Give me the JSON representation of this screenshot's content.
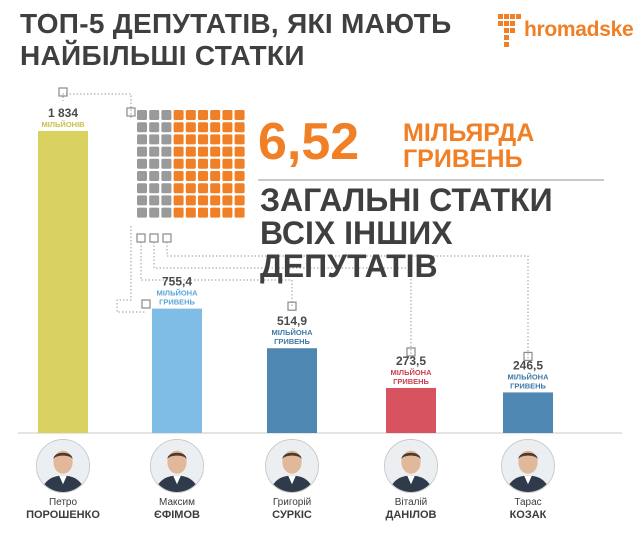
{
  "title": "ТОП-5 ДЕПУТАТІВ, ЯКІ МАЮТЬ НАЙБІЛЬШІ СТАТКИ",
  "brand": {
    "name": "hromadske",
    "color": "#f07f25"
  },
  "total": {
    "value": "6,52",
    "unit": "МІЛЬЯРДА ГРИВЕНЬ",
    "label": "ЗАГАЛЬНІ СТАТКИ ВСІХ ІНШИХ ДЕПУТАТІВ",
    "color": "#f07f25"
  },
  "chart_data": {
    "type": "bar",
    "title": "ТОП-5 ДЕПУТАТІВ, ЯКІ МАЮТЬ НАЙБІЛЬШІ СТАТКИ",
    "xlabel": "",
    "ylabel": "",
    "unit": "млн грн",
    "ylim": [
      0,
      1834
    ],
    "categories": [
      "Петро Порошенко",
      "Максим Єфімов",
      "Григорій Суркіс",
      "Віталій Данілов",
      "Тарас Козак"
    ],
    "values": [
      1834,
      755.4,
      514.9,
      273.5,
      246.5
    ],
    "grid": false,
    "bars": [
      {
        "first": "Петро",
        "last": "ПОРОШЕНКО",
        "value": 1834,
        "value_label": "1 834",
        "unit_label": "МІЛЬЙОНІВ",
        "color": "#d9d260",
        "label_color": "#c9c04a"
      },
      {
        "first": "Максим",
        "last": "ЄФІМОВ",
        "value": 755.4,
        "value_label": "755,4",
        "unit_label": "МІЛЬЙОНА ГРИВЕНЬ",
        "color": "#7fbde6",
        "label_color": "#5aa6da"
      },
      {
        "first": "Григорій",
        "last": "СУРКІС",
        "value": 514.9,
        "value_label": "514,9",
        "unit_label": "МІЛЬЙОНА ГРИВЕНЬ",
        "color": "#4f87b3",
        "label_color": "#3e79a8"
      },
      {
        "first": "Віталій",
        "last": "ДАНІЛОВ",
        "value": 273.5,
        "value_label": "273,5",
        "unit_label": "МІЛЬЙОНА ГРИВЕНЬ",
        "color": "#d6535f",
        "label_color": "#c8414d"
      },
      {
        "first": "Тарас",
        "last": "КОЗАК",
        "value": 246.5,
        "value_label": "246,5",
        "unit_label": "МІЛЬЙОНА ГРИВЕНЬ",
        "color": "#4f87b3",
        "label_color": "#3e79a8"
      }
    ],
    "unit_grid": {
      "total_cells": 81,
      "gray_cells": 27,
      "orange_cells": 54,
      "gray_color": "#9a9a9a",
      "orange_color": "#f07f25"
    }
  }
}
